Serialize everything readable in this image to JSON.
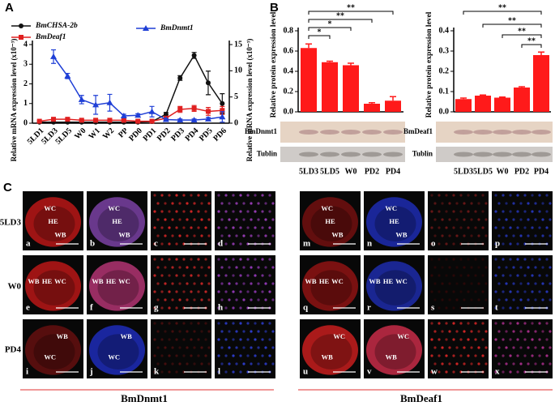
{
  "chart_data": [
    {
      "type": "line",
      "categories": [
        "5LD1",
        "5LD3",
        "5LD5",
        "W0",
        "W1",
        "W2",
        "PP",
        "PD0",
        "PD1",
        "PD2",
        "PD3",
        "PD4",
        "PD5",
        "PD6"
      ],
      "ylabel": "Relative mRNA expression level (x10⁻³)",
      "y2label": "Relative mRNA expression level (x10⁻³)",
      "ylim": [
        0,
        4
      ],
      "yticks": [
        0,
        1,
        2,
        3,
        4
      ],
      "y2lim": [
        0,
        15
      ],
      "y2ticks": [
        0,
        5,
        10,
        15
      ],
      "series": [
        {
          "name": "BmCHSA-2b",
          "color": "#111111",
          "marker": "circle",
          "values": [
            0.05,
            0.05,
            0.05,
            0.05,
            0.05,
            0.05,
            0.05,
            0.05,
            0.08,
            0.45,
            2.3,
            3.45,
            2.05,
            1.0
          ],
          "errors": [
            0.02,
            0.02,
            0.02,
            0.02,
            0.02,
            0.02,
            0.02,
            0.02,
            0.03,
            0.1,
            0.12,
            0.15,
            0.6,
            0.5
          ]
        },
        {
          "name": "BmDeaf1",
          "color": "#e02020",
          "marker": "square",
          "values": [
            0.1,
            0.2,
            0.2,
            0.15,
            0.15,
            0.15,
            0.15,
            0.1,
            0.1,
            0.25,
            0.7,
            0.75,
            0.6,
            0.65
          ],
          "errors": [
            0.03,
            0.05,
            0.05,
            0.04,
            0.04,
            0.04,
            0.04,
            0.03,
            0.03,
            0.1,
            0.15,
            0.15,
            0.2,
            0.2
          ]
        },
        {
          "name": "BmDnmt1",
          "color": "#1f3fd6",
          "marker": "triangle",
          "axis": "y2",
          "values": [
            null,
            12.7,
            9.0,
            4.5,
            3.5,
            3.9,
            1.4,
            1.5,
            2.2,
            0.7,
            0.6,
            0.6,
            0.8,
            1.2
          ],
          "errors": [
            null,
            1.3,
            0.5,
            0.8,
            1.8,
            1.6,
            0.3,
            0.3,
            1.0,
            0.2,
            0.2,
            0.2,
            0.3,
            1.0
          ]
        }
      ]
    },
    {
      "type": "bar",
      "ylabel": "Relative protein expression level",
      "color": "#ff1a1a",
      "categories": [
        "5LD3",
        "5LD5",
        "W0",
        "PD2",
        "PD4"
      ],
      "values": [
        0.63,
        0.49,
        0.46,
        0.08,
        0.11
      ],
      "errors": [
        0.04,
        0.01,
        0.02,
        0.01,
        0.04
      ],
      "ylim": [
        0,
        0.8
      ],
      "yticks": [
        {
          "value": 0,
          "label": "0.0"
        },
        0.2,
        0.4,
        0.6,
        0.8
      ],
      "significance": [
        "**",
        "**",
        "*",
        "*"
      ],
      "blot_labels": [
        "BmDnmt1",
        "Tublin"
      ]
    },
    {
      "type": "bar",
      "ylabel": "Relative protein expression level",
      "color": "#ff1a1a",
      "categories": [
        "5LD3",
        "5LD5",
        "W0",
        "PD2",
        "PD4"
      ],
      "values": [
        0.063,
        0.08,
        0.07,
        0.12,
        0.28
      ],
      "errors": [
        0.005,
        0.003,
        0.003,
        0.004,
        0.015
      ],
      "ylim": [
        0,
        0.4
      ],
      "yticks": [
        {
          "value": 0,
          "label": "0.0"
        },
        0.1,
        0.2,
        0.3,
        0.4
      ],
      "significance": [
        "**",
        "**",
        "**",
        "**"
      ],
      "blot_labels": [
        "BmDeaf1",
        "Tublin"
      ]
    }
  ],
  "figure": {
    "panel_labels": [
      "A",
      "B",
      "C"
    ],
    "row_labels": [
      "5LD3",
      "W0",
      "PD4"
    ],
    "footer": [
      "BmDnmt1",
      "BmDeaf1"
    ],
    "micrographs": [
      {
        "letter": "a",
        "color": "#d01818",
        "labels": [
          "WC",
          "HE",
          "WB"
        ]
      },
      {
        "letter": "b",
        "color": "#8a48b8",
        "labels": [
          "WC",
          "HE",
          "WB"
        ]
      },
      {
        "letter": "c",
        "color": "#e02828",
        "labels": []
      },
      {
        "letter": "d",
        "color": "#a040c0",
        "labels": []
      },
      {
        "letter": "e",
        "color": "#d01818",
        "labels": [
          "WB",
          "HE",
          "WC"
        ]
      },
      {
        "letter": "f",
        "color": "#c83a80",
        "labels": [
          "WB",
          "HE",
          "WC"
        ]
      },
      {
        "letter": "g",
        "color": "#d02828",
        "labels": []
      },
      {
        "letter": "h",
        "color": "#9a3cc0",
        "labels": []
      },
      {
        "letter": "i",
        "color": "#701010",
        "labels": [
          "WB",
          "WC"
        ]
      },
      {
        "letter": "j",
        "color": "#2030d0",
        "labels": [
          "WB",
          "WC"
        ]
      },
      {
        "letter": "k",
        "color": "#501010",
        "labels": []
      },
      {
        "letter": "l",
        "color": "#3040d8",
        "labels": []
      },
      {
        "letter": "m",
        "color": "#801010",
        "labels": [
          "WC",
          "HE",
          "WB"
        ]
      },
      {
        "letter": "n",
        "color": "#2030c8",
        "labels": [
          "WC",
          "HE",
          "WB"
        ]
      },
      {
        "letter": "o",
        "color": "#701818",
        "labels": []
      },
      {
        "letter": "p",
        "color": "#2838c0",
        "labels": []
      },
      {
        "letter": "q",
        "color": "#a01414",
        "labels": [
          "WB",
          "HE",
          "WC"
        ]
      },
      {
        "letter": "r",
        "color": "#2030c0",
        "labels": [
          "WB",
          "HE",
          "WC"
        ]
      },
      {
        "letter": "s",
        "color": "#300808",
        "labels": []
      },
      {
        "letter": "t",
        "color": "#2838c0",
        "labels": []
      },
      {
        "letter": "u",
        "color": "#e02020",
        "labels": [
          "WC",
          "WB"
        ]
      },
      {
        "letter": "v",
        "color": "#e03050",
        "labels": [
          "WC",
          "WB"
        ]
      },
      {
        "letter": "w",
        "color": "#e02828",
        "labels": []
      },
      {
        "letter": "x",
        "color": "#b03090",
        "labels": []
      }
    ]
  }
}
